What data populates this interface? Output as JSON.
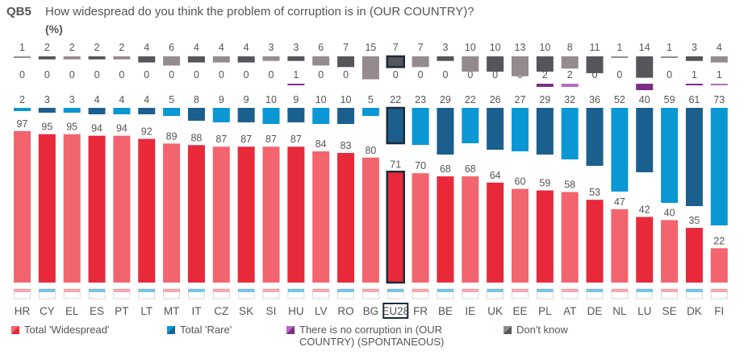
{
  "header": {
    "code": "QB5",
    "question": "How widespread do you think the problem of corruption is in (OUR COUNTRY)?",
    "unit": "(%)"
  },
  "colors": {
    "widespread": "#e8293a",
    "widespread_light": "#f2646e",
    "rare": "#1a5f8d",
    "rare_light": "#0a97d4",
    "none": "#7e2d86",
    "none_light": "#b36cc0",
    "dontknow": "#56565a",
    "dontknow_light": "#958a8d",
    "eu_outline": "#1d2b3b"
  },
  "legend": [
    {
      "key": "widespread",
      "label": "Total 'Widespread'"
    },
    {
      "key": "rare",
      "label": "Total 'Rare'"
    },
    {
      "key": "none",
      "label": "There is no corruption in (OUR COUNTRY) (SPONTANEOUS)"
    },
    {
      "key": "dontknow",
      "label": "Don't know"
    }
  ],
  "chart_data": {
    "type": "bar",
    "stacking": "widespread bars from the baseline; rare, no-corruption and don't know as separate blocks above",
    "categories": [
      "HR",
      "CY",
      "EL",
      "ES",
      "PT",
      "LT",
      "MT",
      "IT",
      "CZ",
      "SK",
      "SI",
      "HU",
      "LV",
      "RO",
      "BG",
      "EU28",
      "FR",
      "BE",
      "IE",
      "UK",
      "EE",
      "PL",
      "AT",
      "DE",
      "NL",
      "LU",
      "SE",
      "DK",
      "FI"
    ],
    "highlight_category": "EU28",
    "series": [
      {
        "name": "Total 'Widespread'",
        "values": [
          97,
          95,
          95,
          94,
          94,
          92,
          89,
          88,
          87,
          87,
          87,
          87,
          84,
          83,
          80,
          71,
          70,
          68,
          68,
          64,
          60,
          59,
          58,
          53,
          47,
          42,
          40,
          35,
          22
        ]
      },
      {
        "name": "Total 'Rare'",
        "values": [
          2,
          3,
          3,
          4,
          4,
          4,
          5,
          8,
          9,
          9,
          10,
          9,
          10,
          10,
          5,
          22,
          23,
          29,
          22,
          26,
          27,
          29,
          32,
          36,
          52,
          40,
          59,
          61,
          73
        ]
      },
      {
        "name": "There is no corruption in (OUR COUNTRY) (SPONTANEOUS)",
        "values": [
          0,
          0,
          0,
          0,
          0,
          0,
          0,
          0,
          0,
          0,
          0,
          1,
          0,
          0,
          0,
          0,
          0,
          0,
          0,
          0,
          0,
          2,
          2,
          0,
          0,
          4,
          0,
          1,
          1
        ]
      },
      {
        "name": "Don't know",
        "values": [
          1,
          2,
          2,
          2,
          2,
          4,
          6,
          4,
          4,
          4,
          3,
          3,
          6,
          7,
          15,
          7,
          7,
          3,
          10,
          10,
          13,
          10,
          8,
          11,
          1,
          14,
          1,
          3,
          4
        ]
      }
    ]
  }
}
